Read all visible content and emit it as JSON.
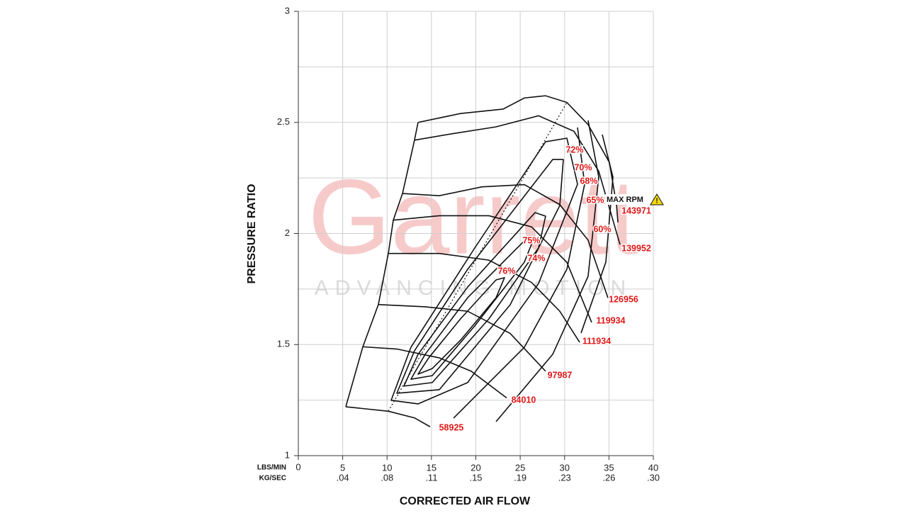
{
  "chart_data": {
    "type": "compressor-map",
    "xlabel": "CORRECTED AIR FLOW",
    "ylabel": "PRESSURE RATIO",
    "x_row_label": "LBS/MIN",
    "x2_row_label": "KG/SEC",
    "watermark": {
      "title": "Garrett",
      "subtitle": "ADVANCING MOTION"
    },
    "max_rpm_label": "MAX RPM",
    "xlim": [
      0,
      40
    ],
    "xticks": [
      0,
      5,
      10,
      15,
      20,
      25,
      30,
      35,
      40
    ],
    "x2lim": [
      0,
      0.3024
    ],
    "x2ticks": [
      {
        "value": 0.0378,
        "label": ".04"
      },
      {
        "value": 0.0756,
        "label": ".08"
      },
      {
        "value": 0.1134,
        "label": ".11"
      },
      {
        "value": 0.1512,
        "label": ".15"
      },
      {
        "value": 0.189,
        "label": ".19"
      },
      {
        "value": 0.2268,
        "label": ".23"
      },
      {
        "value": 0.2646,
        "label": ".26"
      },
      {
        "value": 0.3024,
        "label": ".30"
      }
    ],
    "ylim": [
      1,
      3
    ],
    "yticks": [
      1,
      1.5,
      2,
      2.5,
      3
    ],
    "yminor": [
      1.25,
      1.75,
      2.25,
      2.75
    ],
    "grid": true,
    "line_color": "#111111",
    "label_color": "#e01818",
    "speed_lines": {
      "values": [
        58925,
        84010,
        97987,
        111934,
        119934,
        126956,
        139952,
        143971
      ],
      "contours": [
        {
          "x": [
            5.35,
            10.14,
            13.09,
            14.85
          ],
          "y": [
            1.22,
            1.2,
            1.17,
            1.13
          ]
        },
        {
          "x": [
            7.27,
            11.1,
            15.89,
            19.48,
            23.47
          ],
          "y": [
            1.49,
            1.48,
            1.44,
            1.38,
            1.26
          ]
        },
        {
          "x": [
            9.02,
            14.29,
            19.08,
            23.87,
            27.86
          ],
          "y": [
            1.68,
            1.67,
            1.65,
            1.55,
            1.38
          ]
        },
        {
          "x": [
            10.14,
            15.89,
            21.48,
            26.27,
            29.46,
            31.7
          ],
          "y": [
            1.91,
            1.91,
            1.88,
            1.78,
            1.65,
            1.51
          ]
        },
        {
          "x": [
            10.7,
            15.89,
            21.48,
            26.27,
            30.26,
            33.05
          ],
          "y": [
            2.06,
            2.08,
            2.08,
            2.03,
            1.87,
            1.6
          ]
        },
        {
          "x": [
            11.74,
            15.89,
            20.68,
            25.47,
            29.46,
            32.65,
            34.89
          ],
          "y": [
            2.18,
            2.17,
            2.21,
            2.22,
            2.13,
            1.97,
            1.71
          ]
        },
        {
          "x": [
            13.09,
            17.49,
            22.28,
            27.07,
            31.06,
            33.85,
            36.25
          ],
          "y": [
            2.42,
            2.45,
            2.48,
            2.53,
            2.46,
            2.28,
            1.95
          ]
        },
        {
          "x": [
            13.49,
            18.28,
            23.07,
            25.47,
            27.86,
            30.26,
            32.65,
            35.05,
            35.85,
            36.01
          ],
          "y": [
            2.5,
            2.54,
            2.56,
            2.61,
            2.62,
            2.59,
            2.49,
            2.32,
            2.13,
            2.05
          ]
        }
      ]
    },
    "efficiency_islands": {
      "values": [
        76,
        75,
        74,
        72,
        70,
        68,
        65,
        60
      ],
      "value_labels": [
        "76%",
        "75%",
        "74%",
        "72%",
        "70%",
        "68%",
        "65%",
        "60%"
      ],
      "contours": [
        {
          "closed": true,
          "x": [
            13.49,
            14.69,
            18.28,
            22.28,
            23.23,
            22.28,
            18.28,
            15.09
          ],
          "y": [
            1.367,
            1.44,
            1.616,
            1.791,
            1.801,
            1.711,
            1.52,
            1.392
          ]
        },
        {
          "closed": true,
          "x": [
            12.69,
            14.29,
            19.08,
            25.47,
            26.43,
            25.47,
            19.88,
            15.09
          ],
          "y": [
            1.344,
            1.456,
            1.711,
            1.967,
            1.967,
            1.871,
            1.584,
            1.36
          ]
        },
        {
          "closed": true,
          "x": [
            11.9,
            13.49,
            19.08,
            26.67,
            27.86,
            27.07,
            21.48,
            15.09
          ],
          "y": [
            1.313,
            1.456,
            1.759,
            2.094,
            2.078,
            1.935,
            1.616,
            1.329
          ]
        },
        {
          "closed": true,
          "x": [
            11.1,
            13.09,
            19.08,
            28.66,
            29.86,
            29.46,
            23.87,
            15.89
          ],
          "y": [
            1.281,
            1.472,
            1.839,
            2.333,
            2.333,
            2.126,
            1.679,
            1.297
          ]
        },
        {
          "closed": true,
          "x": [
            10.46,
            12.69,
            19.88,
            27.86,
            30.26,
            31.46,
            27.07,
            19.08,
            13.49
          ],
          "y": [
            1.249,
            1.488,
            1.935,
            2.413,
            2.429,
            2.222,
            1.775,
            1.329,
            1.233
          ]
        },
        {
          "closed": false,
          "x": [
            17.49,
            25.47,
            30.26,
            32.26,
            31.46
          ],
          "y": [
            1.169,
            1.488,
            1.839,
            2.222,
            2.477
          ]
        },
        {
          "closed": false,
          "x": [
            22.28,
            28.66,
            32.65,
            33.85,
            32.65
          ],
          "y": [
            1.153,
            1.456,
            1.807,
            2.254,
            2.509
          ]
        },
        {
          "closed": false,
          "x": [
            31.86,
            34.65,
            35.45,
            34.25
          ],
          "y": [
            1.552,
            1.871,
            2.254,
            2.445
          ]
        }
      ]
    },
    "peak_efficiency_line": {
      "x": [
        10.14,
        30.26
      ],
      "y": [
        1.2,
        2.59
      ]
    }
  }
}
